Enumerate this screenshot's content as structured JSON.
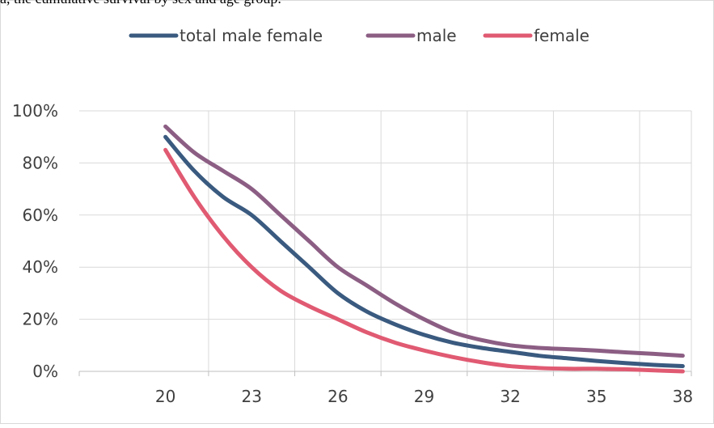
{
  "caption_fragment": "a, the cumulative survival by sex and age group.",
  "chart_data": {
    "type": "line",
    "title": "",
    "xlabel": "",
    "ylabel": "",
    "x": [
      20,
      21,
      22,
      23,
      24,
      25,
      26,
      27,
      28,
      29,
      30,
      31,
      32,
      33,
      34,
      35,
      36,
      37,
      38
    ],
    "x_ticks": [
      20,
      23,
      26,
      29,
      32,
      35,
      38
    ],
    "x_tick_labels": [
      "20",
      "23",
      "26",
      "29",
      "32",
      "35",
      "38"
    ],
    "y_ticks": [
      0,
      20,
      40,
      60,
      80,
      100
    ],
    "y_tick_labels": [
      "0%",
      "20%",
      "40%",
      "60%",
      "80%",
      "100%"
    ],
    "ylim": [
      0,
      100
    ],
    "xlim": [
      17,
      38.3
    ],
    "grid": true,
    "legend_position": "top-center",
    "series": [
      {
        "name": "total male female",
        "color": "#3a5a7f",
        "values": [
          90,
          77,
          67,
          60,
          50,
          40,
          30,
          23,
          18,
          14,
          11,
          9,
          7.5,
          6,
          5,
          4,
          3.2,
          2.5,
          2
        ]
      },
      {
        "name": "male",
        "color": "#8c5e84",
        "values": [
          94,
          84,
          77,
          70,
          60,
          50,
          40,
          33,
          26,
          20,
          15,
          12,
          10,
          9,
          8.5,
          8,
          7.3,
          6.7,
          6
        ]
      },
      {
        "name": "female",
        "color": "#e05a72",
        "values": [
          85,
          67,
          52,
          40,
          31,
          25,
          20,
          15,
          11,
          8,
          5.5,
          3.5,
          2,
          1.3,
          1,
          1,
          0.8,
          0.4,
          0
        ]
      }
    ]
  }
}
